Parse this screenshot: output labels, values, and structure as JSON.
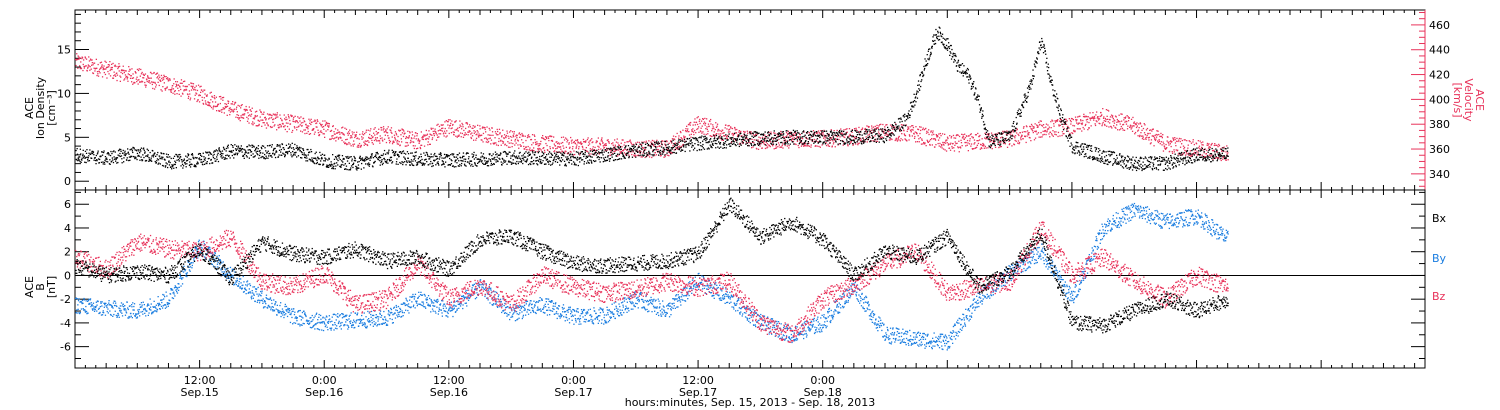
{
  "chart_data": [
    {
      "type": "scatter",
      "ylabel_left": [
        "ACE",
        "Ion Density",
        "[cm⁻³]"
      ],
      "ylabel_right": [
        "ACE",
        "Velocity",
        "[km/s]"
      ],
      "left_axis": {
        "ylim": [
          -1,
          19.5
        ],
        "ticks": [
          0,
          5,
          10,
          15
        ]
      },
      "right_axis": {
        "ylim": [
          327,
          472
        ],
        "ticks": [
          340,
          360,
          380,
          400,
          420,
          440,
          460
        ]
      },
      "series": [
        {
          "axis": "left",
          "color": "#000000",
          "key_points": [
            [
              0,
              3
            ],
            [
              3,
              2.6
            ],
            [
              6,
              3.2
            ],
            [
              9,
              2.2
            ],
            [
              12,
              2.4
            ],
            [
              15,
              3.4
            ],
            [
              18,
              3.3
            ],
            [
              21,
              3.6
            ],
            [
              24,
              2.3
            ],
            [
              27,
              2
            ],
            [
              30,
              2.8
            ],
            [
              33,
              2.5
            ],
            [
              36,
              2.4
            ],
            [
              39,
              2.5
            ],
            [
              42,
              2.7
            ],
            [
              45,
              2.6
            ],
            [
              48,
              2.5
            ],
            [
              51,
              3
            ],
            [
              54,
              3.5
            ],
            [
              57,
              3.8
            ],
            [
              60,
              4.3
            ],
            [
              63,
              4.6
            ],
            [
              66,
              4.9
            ],
            [
              69,
              5
            ],
            [
              72,
              5
            ],
            [
              75,
              5
            ],
            [
              78,
              5.2
            ],
            [
              80,
              7
            ],
            [
              81,
              10
            ],
            [
              82,
              14
            ],
            [
              83,
              17
            ],
            [
              84,
              15.5
            ],
            [
              85,
              13
            ],
            [
              86,
              12
            ],
            [
              87,
              9
            ],
            [
              88,
              4.5
            ],
            [
              90,
              5
            ],
            [
              92,
              11
            ],
            [
              93,
              16
            ],
            [
              94,
              11
            ],
            [
              95,
              7
            ],
            [
              96,
              4
            ],
            [
              99,
              2.8
            ],
            [
              102,
              2
            ],
            [
              105,
              2
            ],
            [
              108,
              3
            ],
            [
              111,
              3
            ]
          ]
        },
        {
          "axis": "right",
          "color": "#e8325a",
          "key_points": [
            [
              0,
              430
            ],
            [
              3,
              424
            ],
            [
              6,
              418
            ],
            [
              9,
              412
            ],
            [
              12,
              404
            ],
            [
              15,
              392
            ],
            [
              18,
              384
            ],
            [
              21,
              380
            ],
            [
              24,
              376
            ],
            [
              27,
              368
            ],
            [
              30,
              372
            ],
            [
              33,
              366
            ],
            [
              36,
              378
            ],
            [
              39,
              372
            ],
            [
              42,
              368
            ],
            [
              45,
              364
            ],
            [
              48,
              362
            ],
            [
              51,
              362
            ],
            [
              54,
              360
            ],
            [
              57,
              360
            ],
            [
              60,
              380
            ],
            [
              63,
              372
            ],
            [
              66,
              366
            ],
            [
              69,
              368
            ],
            [
              72,
              368
            ],
            [
              75,
              370
            ],
            [
              78,
              374
            ],
            [
              81,
              372
            ],
            [
              84,
              364
            ],
            [
              87,
              366
            ],
            [
              90,
              368
            ],
            [
              93,
              376
            ],
            [
              96,
              378
            ],
            [
              99,
              386
            ],
            [
              102,
              378
            ],
            [
              105,
              364
            ],
            [
              108,
              360
            ],
            [
              111,
              356
            ]
          ]
        }
      ]
    },
    {
      "type": "scatter",
      "ylabel_left": [
        "ACE",
        "B",
        "[nT]"
      ],
      "ylim": [
        -7.8,
        7.2
      ],
      "ticks": [
        -6,
        -4,
        -2,
        0,
        2,
        4,
        6
      ],
      "zero_line": true,
      "legend": [
        "Bx",
        "By",
        "Bz"
      ],
      "series": [
        {
          "name": "Bx",
          "color": "#000000",
          "key_points": [
            [
              0,
              0.8
            ],
            [
              3,
              0
            ],
            [
              6,
              0.3
            ],
            [
              9,
              0
            ],
            [
              12,
              2.2
            ],
            [
              15,
              -0.3
            ],
            [
              18,
              2.8
            ],
            [
              21,
              1.8
            ],
            [
              24,
              1.5
            ],
            [
              27,
              2.2
            ],
            [
              30,
              1.2
            ],
            [
              33,
              1.5
            ],
            [
              36,
              0.5
            ],
            [
              39,
              3
            ],
            [
              42,
              3.3
            ],
            [
              45,
              2
            ],
            [
              48,
              1
            ],
            [
              51,
              0.8
            ],
            [
              54,
              1
            ],
            [
              57,
              1.2
            ],
            [
              60,
              1.8
            ],
            [
              63,
              6
            ],
            [
              66,
              3.2
            ],
            [
              69,
              4.5
            ],
            [
              72,
              3
            ],
            [
              75,
              0
            ],
            [
              78,
              2
            ],
            [
              81,
              1.5
            ],
            [
              84,
              3.3
            ],
            [
              87,
              -1
            ],
            [
              90,
              0.3
            ],
            [
              93,
              3.5
            ],
            [
              96,
              -4
            ],
            [
              99,
              -4.2
            ],
            [
              102,
              -3
            ],
            [
              105,
              -2
            ],
            [
              108,
              -3
            ],
            [
              111,
              -2
            ]
          ]
        },
        {
          "name": "By",
          "color": "#1a7de0",
          "key_points": [
            [
              0,
              -2.5
            ],
            [
              3,
              -2.8
            ],
            [
              6,
              -3
            ],
            [
              9,
              -2
            ],
            [
              12,
              2.5
            ],
            [
              15,
              0
            ],
            [
              18,
              -2
            ],
            [
              21,
              -3.5
            ],
            [
              24,
              -4
            ],
            [
              27,
              -3.8
            ],
            [
              30,
              -3.6
            ],
            [
              33,
              -2
            ],
            [
              36,
              -3
            ],
            [
              39,
              -1
            ],
            [
              42,
              -3.2
            ],
            [
              45,
              -2.5
            ],
            [
              48,
              -3.5
            ],
            [
              51,
              -3.4
            ],
            [
              54,
              -2
            ],
            [
              57,
              -3
            ],
            [
              60,
              -0.5
            ],
            [
              63,
              -2
            ],
            [
              66,
              -4
            ],
            [
              69,
              -5
            ],
            [
              72,
              -4
            ],
            [
              75,
              -1
            ],
            [
              78,
              -5
            ],
            [
              81,
              -5.4
            ],
            [
              84,
              -5.6
            ],
            [
              87,
              -2
            ],
            [
              90,
              0.2
            ],
            [
              93,
              2
            ],
            [
              96,
              -2
            ],
            [
              99,
              4
            ],
            [
              102,
              5.5
            ],
            [
              105,
              4.5
            ],
            [
              108,
              5
            ],
            [
              111,
              3
            ]
          ]
        },
        {
          "name": "Bz",
          "color": "#e8325a",
          "key_points": [
            [
              0,
              1.5
            ],
            [
              3,
              0.5
            ],
            [
              6,
              2.8
            ],
            [
              9,
              2.2
            ],
            [
              12,
              2
            ],
            [
              15,
              3.2
            ],
            [
              18,
              -0.5
            ],
            [
              21,
              -1
            ],
            [
              24,
              0.2
            ],
            [
              27,
              -2.5
            ],
            [
              30,
              -2
            ],
            [
              33,
              1
            ],
            [
              36,
              -2
            ],
            [
              39,
              -0.8
            ],
            [
              42,
              -2.5
            ],
            [
              45,
              0
            ],
            [
              48,
              -1
            ],
            [
              51,
              -1.5
            ],
            [
              54,
              -1.2
            ],
            [
              57,
              -0.5
            ],
            [
              60,
              -1
            ],
            [
              63,
              -0.5
            ],
            [
              66,
              -4
            ],
            [
              69,
              -5
            ],
            [
              72,
              -2
            ],
            [
              75,
              -0.8
            ],
            [
              78,
              1
            ],
            [
              81,
              2
            ],
            [
              84,
              -1.5
            ],
            [
              87,
              -1
            ],
            [
              90,
              -0.5
            ],
            [
              93,
              4
            ],
            [
              96,
              0
            ],
            [
              99,
              1.5
            ],
            [
              102,
              -0.5
            ],
            [
              105,
              -2
            ],
            [
              108,
              0
            ],
            [
              111,
              -1
            ]
          ]
        }
      ]
    }
  ],
  "x_axis": {
    "xlim": [
      0,
      130
    ],
    "ticks": [
      {
        "time": "12:00",
        "date": "Sep.15",
        "hours": 12
      },
      {
        "time": "0:00",
        "date": "Sep.16",
        "hours": 24
      },
      {
        "time": "12:00",
        "date": "Sep.16",
        "hours": 36
      },
      {
        "time": "0:00",
        "date": "Sep.17",
        "hours": 48
      },
      {
        "time": "12:00",
        "date": "Sep.17",
        "hours": 60
      },
      {
        "time": "0:00",
        "date": "Sep.18",
        "hours": 72
      }
    ],
    "xlabel": "hours:minutes, Sep. 15, 2013 - Sep. 18, 2013"
  }
}
